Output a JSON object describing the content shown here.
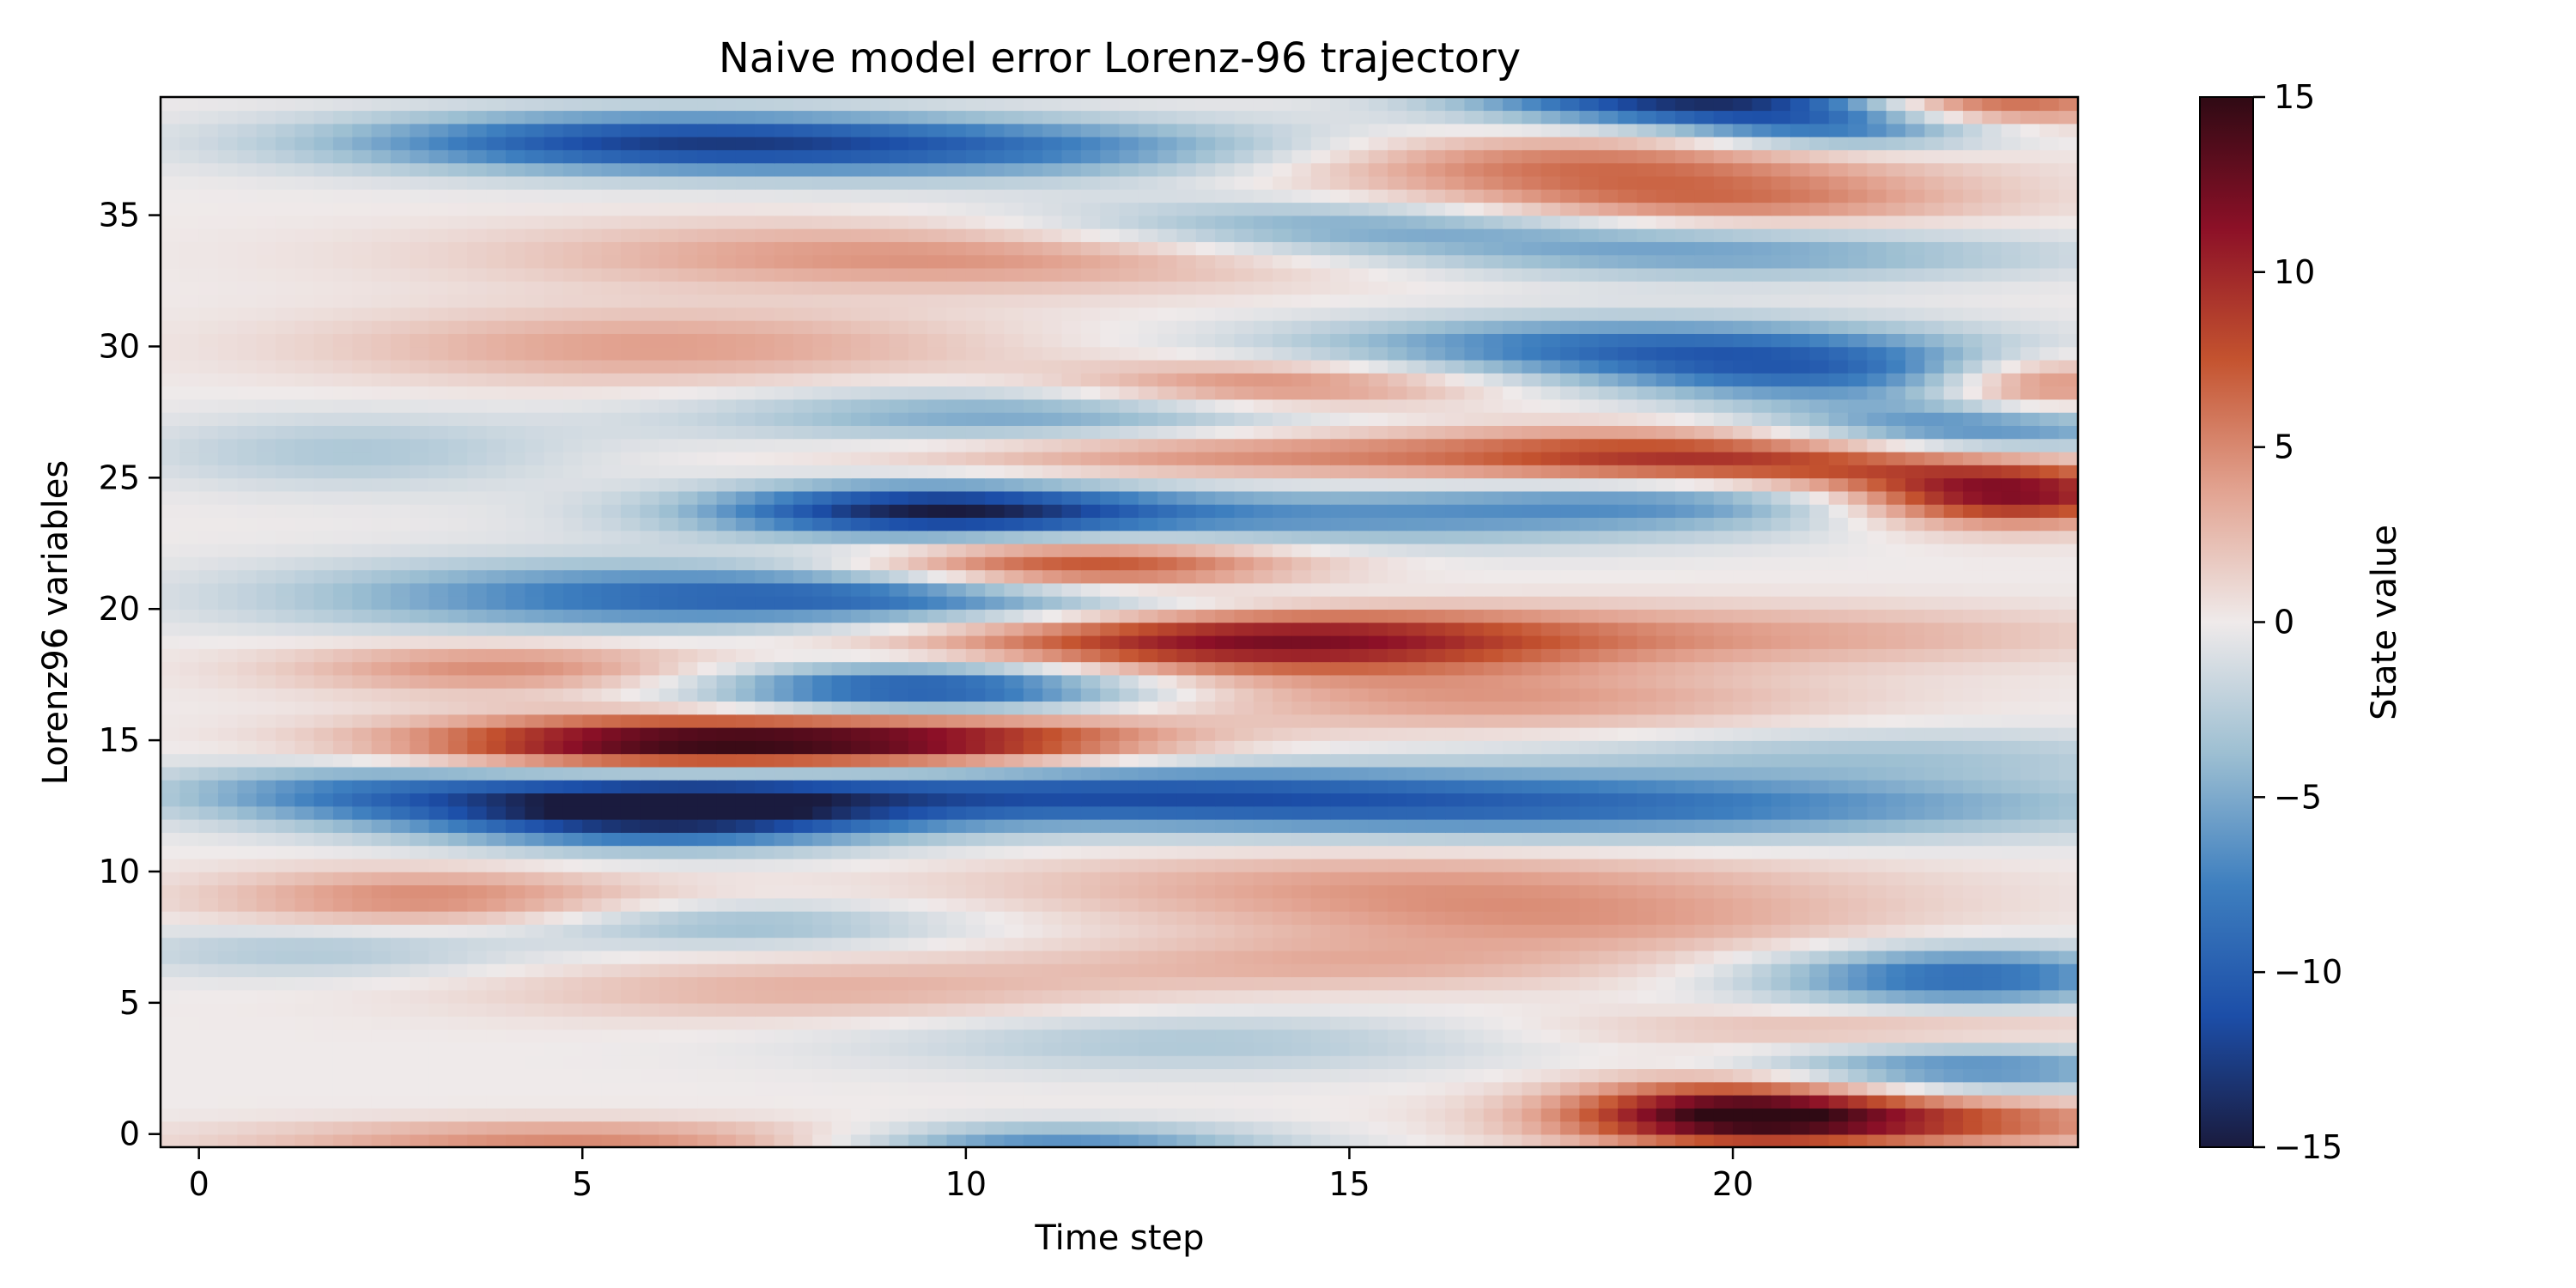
{
  "chart_data": {
    "type": "heatmap",
    "title": "Naive model error Lorenz-96 trajectory",
    "xlabel": "Time step",
    "ylabel": "Lorenz96 variables",
    "xlim": [
      -0.5,
      24.5
    ],
    "ylim": [
      -0.5,
      39.5
    ],
    "x_ticks": [
      {
        "value": 0,
        "label": "0"
      },
      {
        "value": 5,
        "label": "5"
      },
      {
        "value": 10,
        "label": "10"
      },
      {
        "value": 15,
        "label": "15"
      },
      {
        "value": 20,
        "label": "20"
      }
    ],
    "y_ticks": [
      {
        "value": 0,
        "label": "0"
      },
      {
        "value": 5,
        "label": "5"
      },
      {
        "value": 10,
        "label": "10"
      },
      {
        "value": 15,
        "label": "15"
      },
      {
        "value": 20,
        "label": "20"
      },
      {
        "value": 25,
        "label": "25"
      },
      {
        "value": 30,
        "label": "30"
      },
      {
        "value": 35,
        "label": "35"
      }
    ],
    "colorbar": {
      "label": "State value",
      "range": [
        -15,
        15
      ],
      "ticks": [
        {
          "value": 15,
          "label": "15"
        },
        {
          "value": 10,
          "label": "10"
        },
        {
          "value": 5,
          "label": "5"
        },
        {
          "value": 0,
          "label": "0"
        },
        {
          "value": -5,
          "label": "−5"
        },
        {
          "value": -10,
          "label": "−10"
        },
        {
          "value": -15,
          "label": "−15"
        }
      ],
      "colormap": [
        "#1a1b3e",
        "#1c4ea8",
        "#3e7fbf",
        "#9dbfd2",
        "#efeaea",
        "#e2a391",
        "#c4532f",
        "#8c1027",
        "#2f0a14"
      ]
    },
    "grid": false,
    "features": [
      {
        "x": 6.0,
        "y": 12.3,
        "v": -14.5,
        "sx": 2.2,
        "sy": 0.9
      },
      {
        "x": 6.2,
        "y": 14.9,
        "v": 14.0,
        "sx": 2.4,
        "sy": 0.7
      },
      {
        "x": 10.0,
        "y": 15.0,
        "v": 8.0,
        "sx": 2.0,
        "sy": 0.7
      },
      {
        "x": 2.0,
        "y": 13.0,
        "v": -6.0,
        "sx": 2.0,
        "sy": 0.8
      },
      {
        "x": 11.0,
        "y": 13.0,
        "v": -8.0,
        "sx": 4.0,
        "sy": 0.8
      },
      {
        "x": 18.0,
        "y": 12.5,
        "v": -8.0,
        "sx": 5.0,
        "sy": 0.9
      },
      {
        "x": 14.0,
        "y": 18.8,
        "v": 12.0,
        "sx": 3.0,
        "sy": 0.9
      },
      {
        "x": 9.5,
        "y": 17.0,
        "v": -11.0,
        "sx": 2.0,
        "sy": 0.7
      },
      {
        "x": 11.5,
        "y": 21.5,
        "v": 10.0,
        "sx": 2.0,
        "sy": 0.8
      },
      {
        "x": 10.0,
        "y": 20.5,
        "v": -9.0,
        "sx": 3.0,
        "sy": 0.7
      },
      {
        "x": 5.0,
        "y": 20.5,
        "v": -6.0,
        "sx": 3.0,
        "sy": 1.0
      },
      {
        "x": 9.5,
        "y": 23.8,
        "v": -12.0,
        "sx": 2.0,
        "sy": 0.7
      },
      {
        "x": 14.0,
        "y": 23.5,
        "v": -6.0,
        "sx": 4.0,
        "sy": 0.8
      },
      {
        "x": 19.5,
        "y": 24.5,
        "v": -9.0,
        "sx": 2.5,
        "sy": 0.8
      },
      {
        "x": 20.0,
        "y": 25.5,
        "v": 13.0,
        "sx": 2.8,
        "sy": 0.9
      },
      {
        "x": 23.5,
        "y": 24.3,
        "v": 12.0,
        "sx": 1.5,
        "sy": 0.8
      },
      {
        "x": 23.0,
        "y": 26.8,
        "v": -9.0,
        "sx": 2.0,
        "sy": 0.8
      },
      {
        "x": 11.0,
        "y": 27.3,
        "v": -6.0,
        "sx": 3.0,
        "sy": 0.8
      },
      {
        "x": 13.0,
        "y": 26.0,
        "v": 5.0,
        "sx": 3.0,
        "sy": 0.7
      },
      {
        "x": 18.5,
        "y": 30.0,
        "v": -8.0,
        "sx": 3.0,
        "sy": 0.8
      },
      {
        "x": 21.0,
        "y": 29.0,
        "v": -7.0,
        "sx": 2.0,
        "sy": 0.8
      },
      {
        "x": 24.0,
        "y": 28.5,
        "v": 7.0,
        "sx": 1.0,
        "sy": 0.8
      },
      {
        "x": 14.0,
        "y": 28.5,
        "v": 6.0,
        "sx": 2.0,
        "sy": 0.7
      },
      {
        "x": 6.0,
        "y": 37.8,
        "v": -11.0,
        "sx": 3.0,
        "sy": 0.8
      },
      {
        "x": 11.0,
        "y": 37.5,
        "v": -6.0,
        "sx": 3.0,
        "sy": 0.8
      },
      {
        "x": 19.5,
        "y": 39.5,
        "v": -13.0,
        "sx": 2.0,
        "sy": 0.7
      },
      {
        "x": 21.5,
        "y": 38.5,
        "v": -9.0,
        "sx": 1.5,
        "sy": 0.7
      },
      {
        "x": 23.0,
        "y": 39.2,
        "v": 10.0,
        "sx": 1.5,
        "sy": 0.6
      },
      {
        "x": 18.0,
        "y": 37.0,
        "v": 6.0,
        "sx": 3.0,
        "sy": 0.8
      },
      {
        "x": 19.5,
        "y": 35.5,
        "v": 6.0,
        "sx": 2.5,
        "sy": 0.7
      },
      {
        "x": 15.0,
        "y": 34.5,
        "v": -6.0,
        "sx": 3.0,
        "sy": 0.8
      },
      {
        "x": 20.0,
        "y": 33.5,
        "v": -5.0,
        "sx": 3.0,
        "sy": 0.7
      },
      {
        "x": 10.0,
        "y": 33.5,
        "v": 5.0,
        "sx": 4.0,
        "sy": 0.9
      },
      {
        "x": 20.0,
        "y": 0.9,
        "v": 11.0,
        "sx": 1.5,
        "sy": 0.9
      },
      {
        "x": 22.0,
        "y": 0.5,
        "v": 8.0,
        "sx": 2.5,
        "sy": 0.7
      },
      {
        "x": 23.0,
        "y": 2.5,
        "v": -7.0,
        "sx": 2.0,
        "sy": 0.7
      },
      {
        "x": 23.0,
        "y": 6.0,
        "v": -9.0,
        "sx": 1.8,
        "sy": 0.8
      },
      {
        "x": 22.0,
        "y": 4.0,
        "v": 3.0,
        "sx": 3.0,
        "sy": 0.6
      },
      {
        "x": 11.0,
        "y": -0.3,
        "v": -7.0,
        "sx": 2.0,
        "sy": 0.5
      },
      {
        "x": 5.0,
        "y": -0.2,
        "v": 5.0,
        "sx": 3.0,
        "sy": 0.5
      },
      {
        "x": 16.0,
        "y": 9.5,
        "v": 4.0,
        "sx": 4.0,
        "sy": 1.0
      },
      {
        "x": 18.0,
        "y": 8.0,
        "v": 3.0,
        "sx": 3.0,
        "sy": 0.8
      },
      {
        "x": 3.0,
        "y": 9.0,
        "v": 5.0,
        "sx": 2.0,
        "sy": 0.8
      },
      {
        "x": 7.0,
        "y": 8.0,
        "v": -4.0,
        "sx": 2.0,
        "sy": 0.6
      },
      {
        "x": 1.5,
        "y": 7.0,
        "v": -3.0,
        "sx": 2.0,
        "sy": 0.7
      },
      {
        "x": 4.0,
        "y": 17.8,
        "v": 5.0,
        "sx": 2.0,
        "sy": 0.7
      },
      {
        "x": 2.0,
        "y": 26.0,
        "v": -3.0,
        "sx": 2.0,
        "sy": 1.0
      },
      {
        "x": 6.0,
        "y": 30.0,
        "v": 4.0,
        "sx": 3.0,
        "sy": 1.0
      },
      {
        "x": 17.0,
        "y": 16.5,
        "v": 4.0,
        "sx": 3.0,
        "sy": 0.8
      },
      {
        "x": 21.0,
        "y": 19.0,
        "v": 3.0,
        "sx": 3.0,
        "sy": 0.8
      },
      {
        "x": 22.0,
        "y": 14.5,
        "v": -3.0,
        "sx": 3.0,
        "sy": 0.7
      },
      {
        "x": 8.0,
        "y": 5.5,
        "v": 3.0,
        "sx": 3.0,
        "sy": 0.8
      },
      {
        "x": 13.0,
        "y": 3.5,
        "v": -3.0,
        "sx": 3.0,
        "sy": 0.8
      },
      {
        "x": 15.0,
        "y": 6.5,
        "v": 3.0,
        "sx": 3.0,
        "sy": 0.7
      }
    ]
  }
}
